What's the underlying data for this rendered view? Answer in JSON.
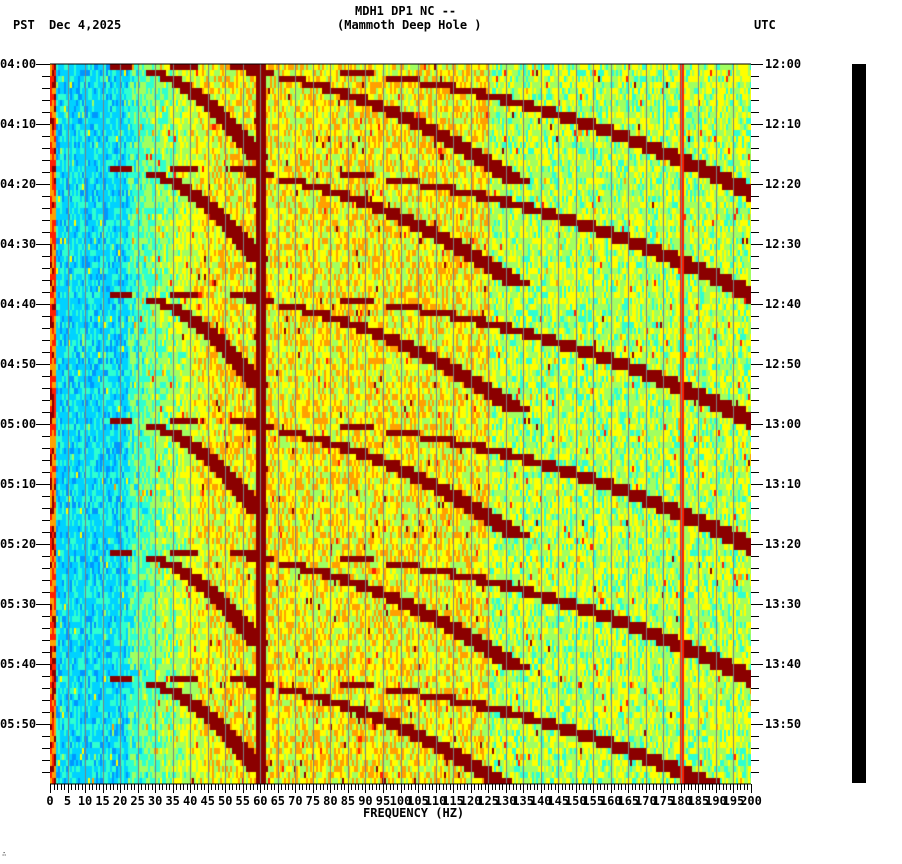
{
  "header": {
    "station_line": "MDH1 DP1 NC --",
    "site_line": "(Mammoth Deep Hole )",
    "left_timezone": "PST",
    "date": "Dec 4,2025",
    "right_timezone": "UTC"
  },
  "footer": {
    "corner_mark": "∴"
  },
  "colors": {
    "background": "#ffffff",
    "axis": "#000000",
    "gridline": "#808080",
    "colormap": [
      "#0050ff",
      "#0096ff",
      "#00d2ff",
      "#2effd0",
      "#a0ff60",
      "#ffff00",
      "#ffa000",
      "#ff2000",
      "#8b0000"
    ],
    "scale_bar": "#000000"
  },
  "chart_data": {
    "type": "heatmap",
    "title": "MDH1 DP1 NC -- (Mammoth Deep Hole )",
    "subtitle": "Dec 4,2025",
    "xlabel": "FREQUENCY (HZ)",
    "ylabel_left": "PST",
    "ylabel_right": "UTC",
    "xlim": [
      0,
      200
    ],
    "x_ticks": [
      0,
      5,
      10,
      15,
      20,
      25,
      30,
      35,
      40,
      45,
      50,
      55,
      60,
      65,
      70,
      75,
      80,
      85,
      90,
      95,
      100,
      105,
      110,
      115,
      120,
      125,
      130,
      135,
      140,
      145,
      150,
      155,
      160,
      165,
      170,
      175,
      180,
      185,
      190,
      195,
      200
    ],
    "x_minor_tick_step": 1,
    "x_gridline_step": 5,
    "y_ticks_left": [
      "04:00",
      "04:10",
      "04:20",
      "04:30",
      "04:40",
      "04:50",
      "05:00",
      "05:10",
      "05:20",
      "05:30",
      "05:40",
      "05:50"
    ],
    "y_ticks_right": [
      "12:00",
      "12:10",
      "12:20",
      "12:30",
      "12:40",
      "12:50",
      "13:00",
      "13:10",
      "13:20",
      "13:30",
      "13:40",
      "13:50"
    ],
    "y_minor_tick_step_min": 2,
    "time_span_minutes": 120,
    "grid": true,
    "features": {
      "constant_lines_hz": [
        60,
        180
      ],
      "low_freq_band_hz": [
        0,
        1
      ],
      "background_low_hz_color": "blue",
      "background_high_hz_color": "green-yellow",
      "sweep_events_start_minutes": [
        0,
        17,
        38,
        59,
        81,
        102
      ],
      "sweep_event_period_minutes": 21.5,
      "sweep_harmonics_end_hz": [
        60,
        95,
        130
      ],
      "sweep_start_hz": 20
    }
  }
}
